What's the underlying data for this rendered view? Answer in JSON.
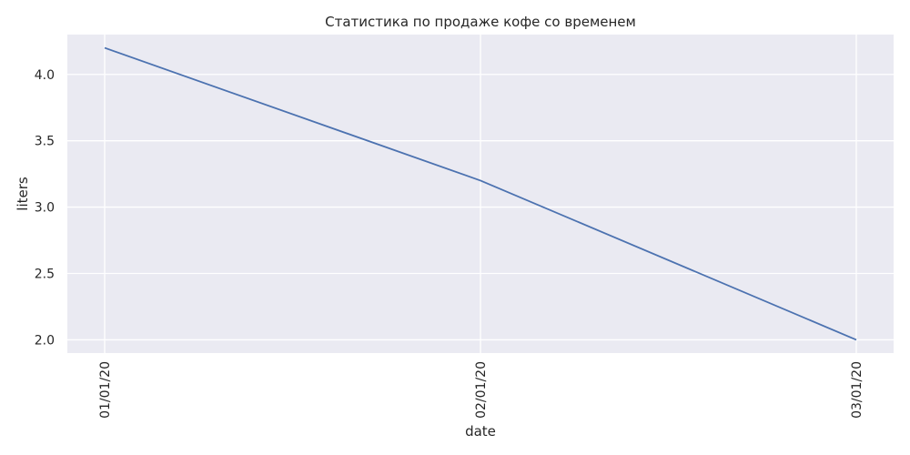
{
  "chart_data": {
    "type": "line",
    "title": "Статистика по продаже кофе со временем",
    "xlabel": "date",
    "ylabel": "liters",
    "x": [
      "01/01/20",
      "02/01/20",
      "03/01/20"
    ],
    "series": [
      {
        "values": [
          4.2,
          3.2,
          2.0
        ],
        "color": "#4c72b0"
      }
    ],
    "ylim": [
      1.9,
      4.3
    ],
    "yticks": [
      "2.0",
      "2.5",
      "3.0",
      "3.5",
      "4.0"
    ],
    "grid": true,
    "background": "#eaeaf2",
    "grid_color": "#ffffff"
  }
}
